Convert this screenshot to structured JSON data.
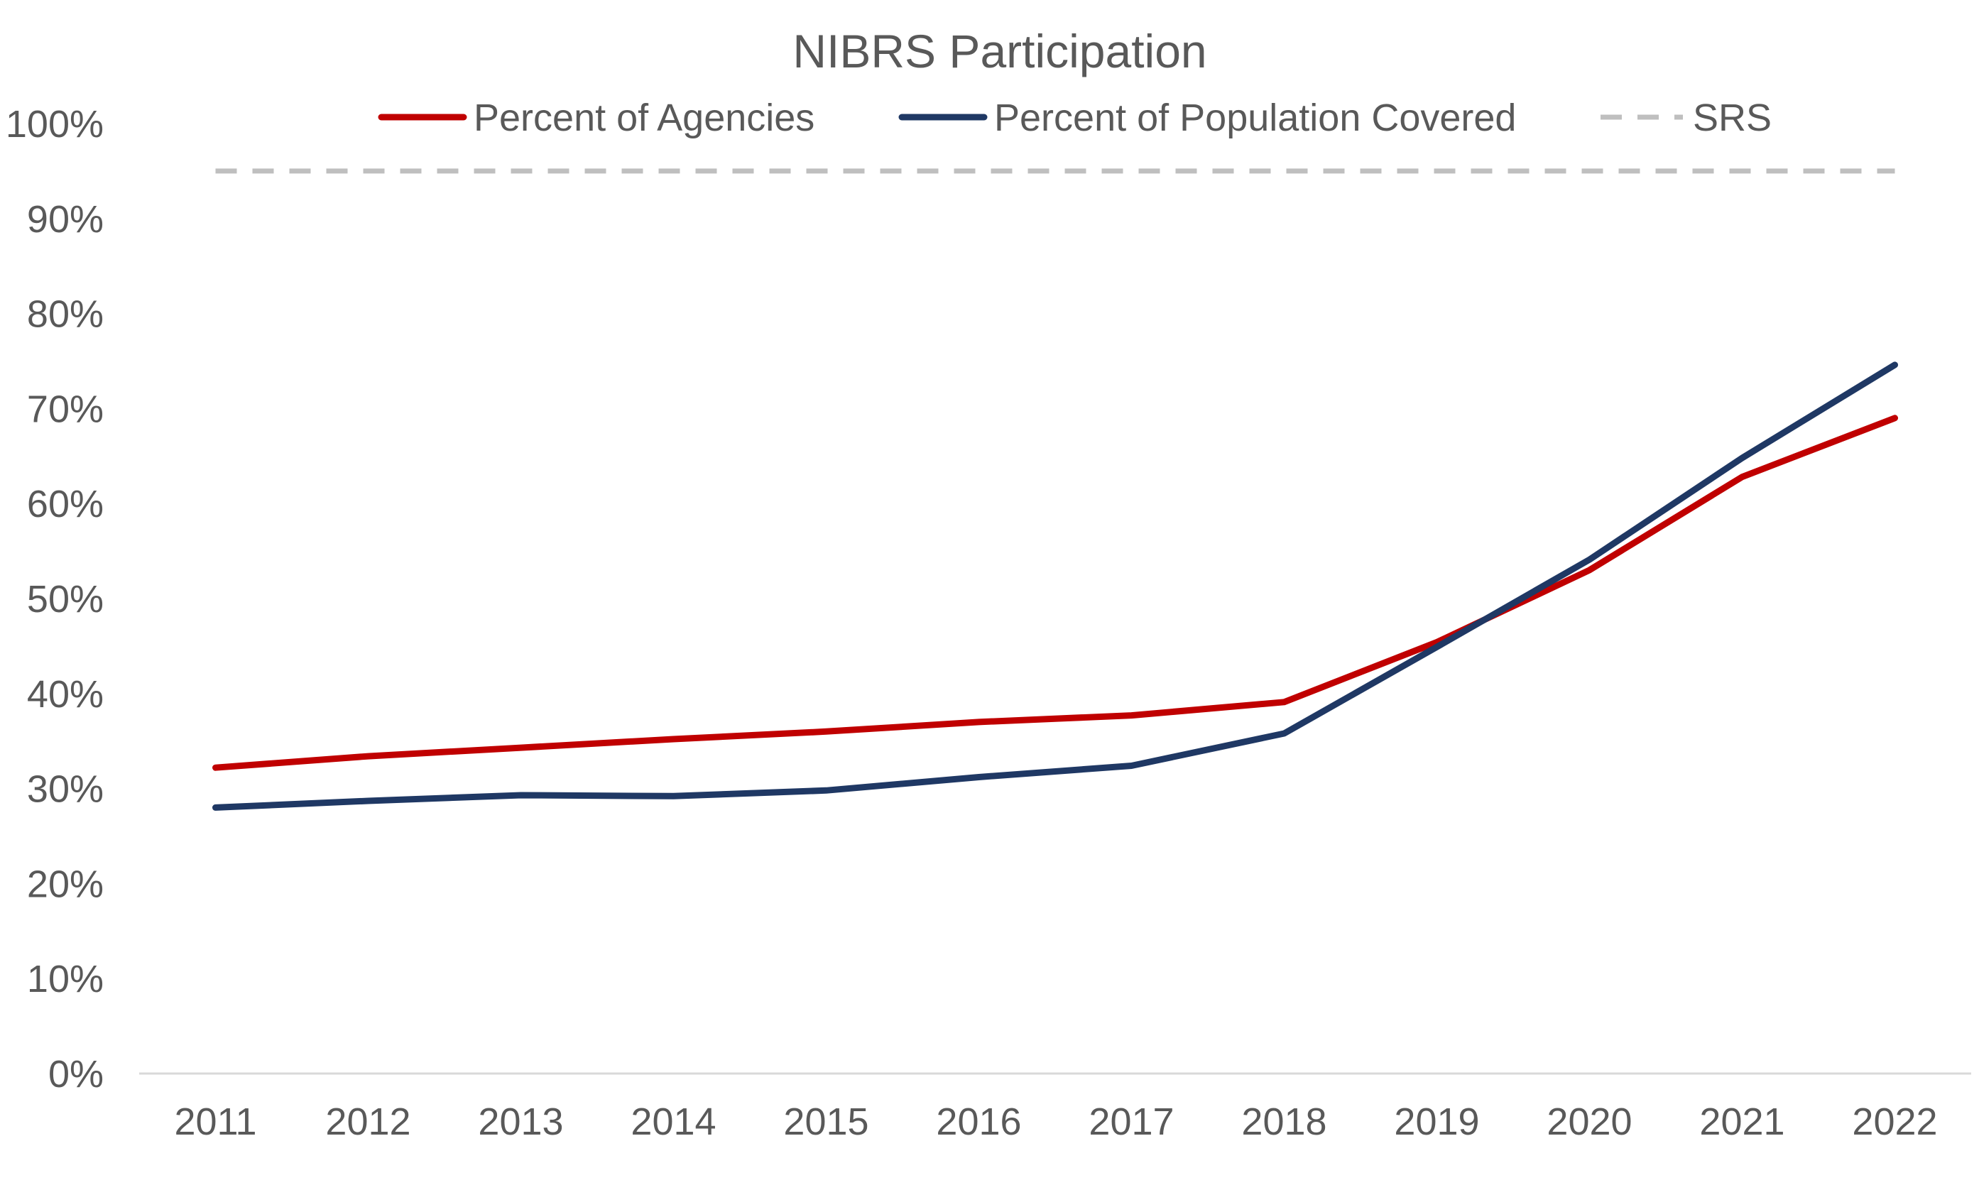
{
  "chart_data": {
    "type": "line",
    "title": "NIBRS Participation",
    "xlabel": "",
    "ylabel": "",
    "categories": [
      "2011",
      "2012",
      "2013",
      "2014",
      "2015",
      "2016",
      "2017",
      "2018",
      "2019",
      "2020",
      "2021",
      "2022"
    ],
    "y_ticks": [
      "0%",
      "10%",
      "20%",
      "30%",
      "40%",
      "50%",
      "60%",
      "70%",
      "80%",
      "90%",
      "100%"
    ],
    "ylim": [
      0,
      100
    ],
    "grid": false,
    "legend_position": "top",
    "series": [
      {
        "name": "Percent of Agencies",
        "color": "#C00000",
        "style": "solid",
        "values": [
          32.2,
          33.4,
          34.3,
          35.2,
          36.0,
          37.0,
          37.7,
          39.1,
          45.4,
          53.0,
          62.8,
          69.0
        ]
      },
      {
        "name": "Percent of Population Covered",
        "color": "#1F3864",
        "style": "solid",
        "values": [
          28.0,
          28.7,
          29.3,
          29.2,
          29.8,
          31.2,
          32.4,
          35.8,
          44.9,
          54.1,
          64.8,
          74.6
        ]
      },
      {
        "name": "SRS",
        "color": "#BFBFBF",
        "style": "dashed",
        "values": [
          95,
          95,
          95,
          95,
          95,
          95,
          95,
          95,
          95,
          95,
          95,
          95
        ]
      }
    ]
  }
}
